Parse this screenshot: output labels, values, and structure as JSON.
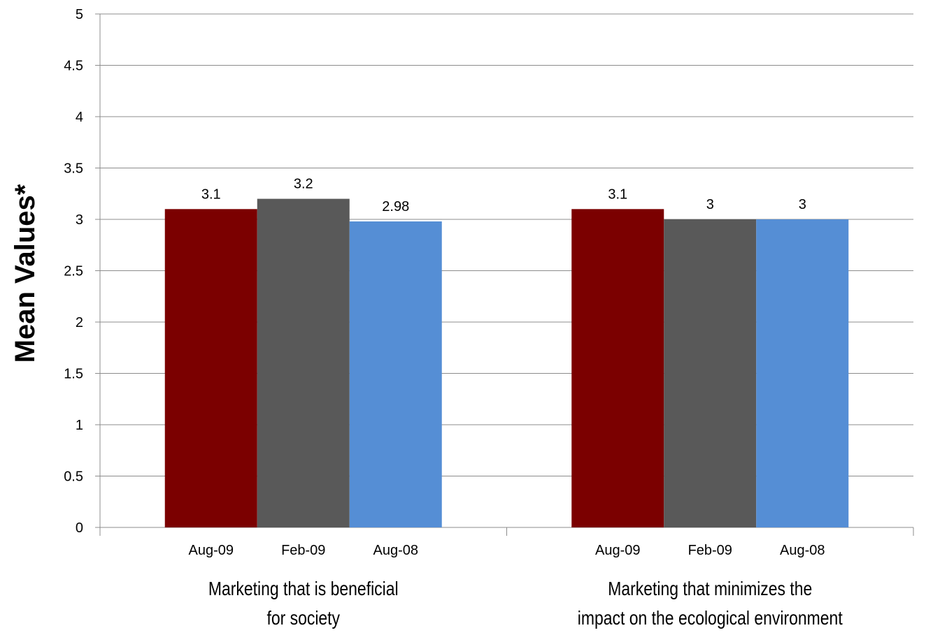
{
  "chart_data": {
    "type": "bar",
    "title": "",
    "ylabel": "Mean Values*",
    "ylim": [
      0,
      5
    ],
    "yticks": [
      "0",
      "0.5",
      "1",
      "1.5",
      "2",
      "2.5",
      "3",
      "3.5",
      "4",
      "4.5",
      "5"
    ],
    "grid": true,
    "groups": [
      {
        "label_lines": [
          "Marketing that is beneficial",
          "for society"
        ],
        "bars": [
          {
            "category": "Aug-09",
            "value": 3.1,
            "label": "3.1",
            "color": "#7B0000"
          },
          {
            "category": "Feb-09",
            "value": 3.2,
            "label": "3.2",
            "color": "#595959"
          },
          {
            "category": "Aug-08",
            "value": 2.98,
            "label": "2.98",
            "color": "#558ED5"
          }
        ]
      },
      {
        "label_lines": [
          "Marketing that minimizes the",
          "impact on the ecological environment"
        ],
        "bars": [
          {
            "category": "Aug-09",
            "value": 3.1,
            "label": "3.1",
            "color": "#7B0000"
          },
          {
            "category": "Feb-09",
            "value": 3.0,
            "label": "3",
            "color": "#595959"
          },
          {
            "category": "Aug-08",
            "value": 3.0,
            "label": "3",
            "color": "#558ED5"
          }
        ]
      }
    ]
  }
}
